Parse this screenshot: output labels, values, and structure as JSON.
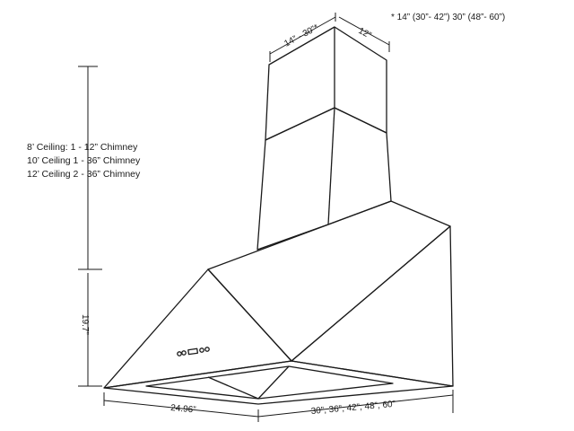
{
  "note": "* 14” (30”- 42”) 30” (48”- 60”)",
  "chimney_depth": "14” - 30”*",
  "chimney_width": "12”",
  "ceiling_options": [
    "8’ Ceiling: 1 - 12” Chimney",
    "10’ Ceiling 1 - 36” Chimney",
    "12’ Ceiling 2 - 36” Chimney"
  ],
  "hood_height": "19.7”",
  "hood_depth": "24.96”",
  "hood_widths": "30”, 36”, 42”, 48”, 60”"
}
